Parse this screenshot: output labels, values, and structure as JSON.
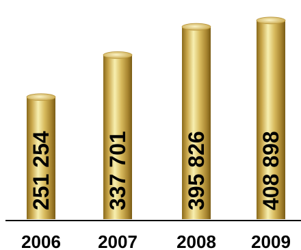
{
  "chart_data": {
    "type": "bar",
    "categories": [
      "2006",
      "2007",
      "2008",
      "2009"
    ],
    "values": [
      251254,
      337701,
      395826,
      408898
    ],
    "value_labels": [
      "251 254",
      "337 701",
      "395 826",
      "408 898"
    ],
    "title": "",
    "xlabel": "",
    "ylabel": "",
    "ylim": [
      0,
      420000
    ],
    "grid": false,
    "legend": "none"
  },
  "colors": {
    "bar_gold_light": "#f7efb0",
    "bar_gold_mid": "#c9a64a",
    "bar_gold_dark": "#8a6a1c",
    "label_text": "#000000"
  }
}
